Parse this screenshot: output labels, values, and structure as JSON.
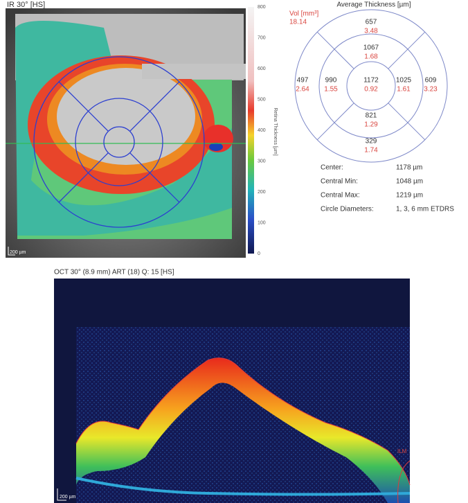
{
  "ir_image": {
    "label": "IR 30° [HS]",
    "scale_bar": "200 µm"
  },
  "color_scale": {
    "ticks": [
      800,
      700,
      600,
      500,
      400,
      300,
      200,
      100,
      0
    ],
    "label": "Retina Thickness [µm]"
  },
  "etdrs": {
    "title": "Average Thickness [µm]",
    "volume_label": "Vol [mm³]",
    "total_volume": 18.14,
    "sectors": [
      {
        "thickness": 1172,
        "volume": 0.92
      },
      {
        "thickness": 1067,
        "volume": 1.68
      },
      {
        "thickness": 990,
        "volume": 1.55
      },
      {
        "thickness": 1025,
        "volume": 1.61
      },
      {
        "thickness": 821,
        "volume": 1.29
      },
      {
        "thickness": 657,
        "volume": 3.48
      },
      {
        "thickness": 497,
        "volume": 2.64
      },
      {
        "thickness": 609,
        "volume": 3.23
      },
      {
        "thickness": 329,
        "volume": 1.74
      }
    ]
  },
  "stats": [
    {
      "label": "Center:",
      "value": "1178 µm"
    },
    {
      "label": "Central Min:",
      "value": "1048 µm"
    },
    {
      "label": "Central Max:",
      "value": "1219 µm"
    },
    {
      "label": "Circle Diameters:",
      "value": "1, 3, 6 mm ETDRS"
    }
  ],
  "oct": {
    "label": "OCT 30° (8.9 mm) ART (18) Q: 15 [HS]",
    "layer_label": "ILM",
    "scale_bar": "200 µm"
  }
}
